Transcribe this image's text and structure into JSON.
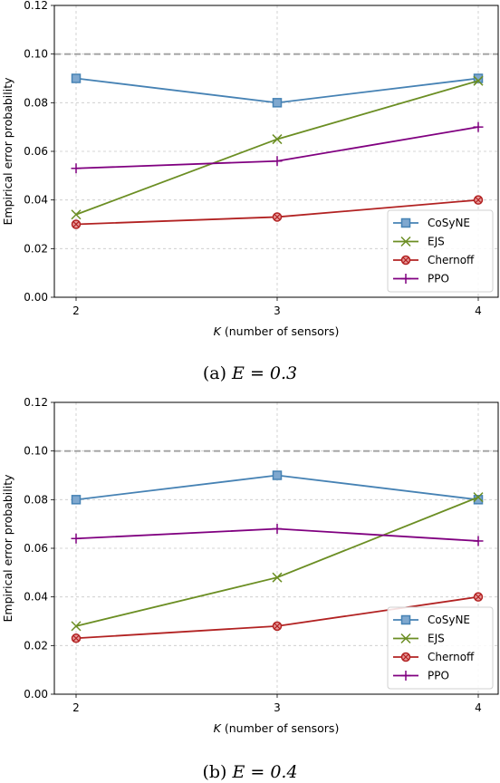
{
  "colors": {
    "CoSyNE": "#4682b4",
    "EJS": "#6b8e23",
    "Chernoff": "#b22222",
    "PPO": "#800080",
    "threshold": "#a0a0a0"
  },
  "chart_data": [
    {
      "type": "line",
      "caption": "(a)",
      "caption_math": "E = 0.3",
      "xlabel": "K (number of sensors)",
      "xlabel_italic": "K",
      "xlabel_rest": " (number of sensors)",
      "ylabel": "Empirical error probability",
      "x": [
        2,
        3,
        4
      ],
      "xticks": [
        "2",
        "3",
        "4"
      ],
      "ylim": [
        0,
        0.12
      ],
      "yticks": [
        "0.00",
        "0.02",
        "0.04",
        "0.06",
        "0.08",
        "0.10",
        "0.12"
      ],
      "grid": true,
      "threshold": 0.1,
      "legend_position": "lower-right",
      "series": [
        {
          "name": "CoSyNE",
          "marker": "square",
          "values": [
            0.09,
            0.08,
            0.09
          ]
        },
        {
          "name": "EJS",
          "marker": "x",
          "values": [
            0.034,
            0.065,
            0.089
          ]
        },
        {
          "name": "Chernoff",
          "marker": "circle-cross",
          "values": [
            0.03,
            0.033,
            0.04
          ]
        },
        {
          "name": "PPO",
          "marker": "plus",
          "values": [
            0.053,
            0.056,
            0.07
          ]
        }
      ]
    },
    {
      "type": "line",
      "caption": "(b)",
      "caption_math": "E = 0.4",
      "xlabel": "K (number of sensors)",
      "xlabel_italic": "K",
      "xlabel_rest": " (number of sensors)",
      "ylabel": "Empirical error probability",
      "x": [
        2,
        3,
        4
      ],
      "xticks": [
        "2",
        "3",
        "4"
      ],
      "ylim": [
        0,
        0.12
      ],
      "yticks": [
        "0.00",
        "0.02",
        "0.04",
        "0.06",
        "0.08",
        "0.10",
        "0.12"
      ],
      "grid": true,
      "threshold": 0.1,
      "legend_position": "lower-right",
      "series": [
        {
          "name": "CoSyNE",
          "marker": "square",
          "values": [
            0.08,
            0.09,
            0.08
          ]
        },
        {
          "name": "EJS",
          "marker": "x",
          "values": [
            0.028,
            0.048,
            0.081
          ]
        },
        {
          "name": "Chernoff",
          "marker": "circle-cross",
          "values": [
            0.023,
            0.028,
            0.04
          ]
        },
        {
          "name": "PPO",
          "marker": "plus",
          "values": [
            0.064,
            0.068,
            0.063
          ]
        }
      ]
    }
  ]
}
